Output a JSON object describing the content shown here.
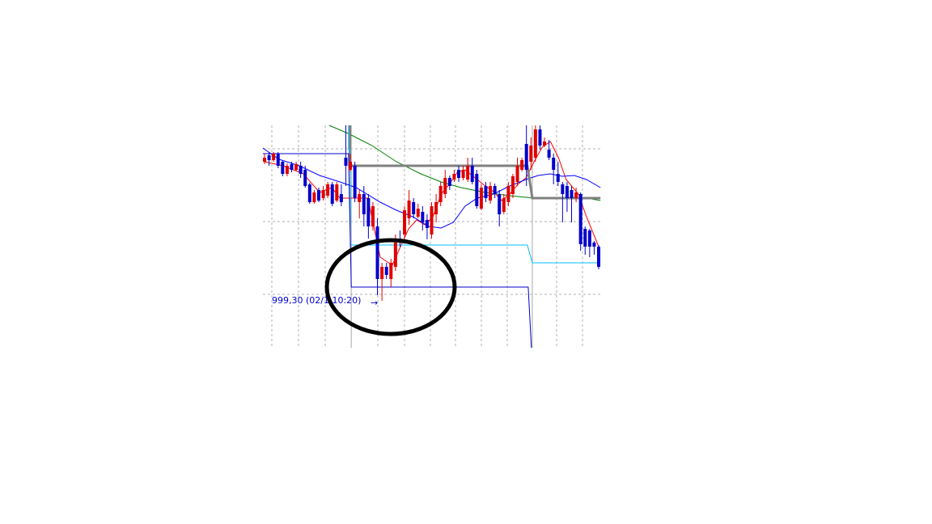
{
  "chart_data": {
    "type": "candlestick",
    "title": "",
    "xlabel": "",
    "ylabel": "",
    "xlim": [
      0,
      74
    ],
    "ylim": [
      993.5,
      1021.0
    ],
    "grid": true,
    "y_gridlines": [
      1000.1,
      1009.1,
      1018.1
    ],
    "session_separators": [
      19.2,
      59.3
    ],
    "colors": {
      "up": "#e00000",
      "down": "#0000cc",
      "grid": "#b0b0b0"
    },
    "candles_ohlc": [
      [
        1016.5,
        1017.5,
        1016.2,
        1017.0
      ],
      [
        1017.3,
        1017.7,
        1016.0,
        1016.7
      ],
      [
        1016.7,
        1017.7,
        1016.5,
        1017.5
      ],
      [
        1017.5,
        1017.7,
        1015.7,
        1016.0
      ],
      [
        1016.5,
        1016.7,
        1014.7,
        1015.0
      ],
      [
        1015.0,
        1016.3,
        1014.7,
        1016.0
      ],
      [
        1016.2,
        1016.5,
        1015.2,
        1015.5
      ],
      [
        1015.5,
        1016.5,
        1015.3,
        1016.2
      ],
      [
        1016.0,
        1016.5,
        1014.5,
        1015.0
      ],
      [
        1015.5,
        1016.0,
        1013.3,
        1013.5
      ],
      [
        1013.7,
        1013.9,
        1011.3,
        1011.5
      ],
      [
        1011.5,
        1013.0,
        1011.3,
        1012.7
      ],
      [
        1013.0,
        1013.3,
        1011.5,
        1011.7
      ],
      [
        1012.0,
        1013.5,
        1011.7,
        1013.0
      ],
      [
        1012.3,
        1014.0,
        1012.0,
        1013.7
      ],
      [
        1013.7,
        1014.0,
        1011.0,
        1011.3
      ],
      [
        1011.7,
        1014.0,
        1011.5,
        1013.7
      ],
      [
        1012.5,
        1013.7,
        1011.0,
        1011.5
      ],
      [
        1017.0,
        1021.0,
        1013.5,
        1016.0
      ],
      [
        1015.5,
        1017.5,
        1015.3,
        1016.5
      ],
      [
        1016.0,
        1016.5,
        1011.5,
        1012.0
      ],
      [
        1011.5,
        1013.0,
        1009.5,
        1012.5
      ],
      [
        1012.5,
        1013.5,
        1008.5,
        1010.0
      ],
      [
        1012.0,
        1012.5,
        1007.0,
        1008.5
      ],
      [
        1008.5,
        1011.5,
        1008.0,
        1011.0
      ],
      [
        1008.5,
        1009.5,
        1000.0,
        1002.0
      ],
      [
        1002.0,
        1004.0,
        999.3,
        1003.5
      ],
      [
        1003.5,
        1004.0,
        1002.0,
        1002.5
      ],
      [
        1002.0,
        1004.5,
        1001.0,
        1004.0
      ],
      [
        1003.5,
        1007.5,
        1003.0,
        1006.5
      ],
      [
        1007.0,
        1008.0,
        1006.0,
        1006.5
      ],
      [
        1007.5,
        1011.0,
        1007.0,
        1010.5
      ],
      [
        1009.5,
        1013.0,
        1008.7,
        1011.7
      ],
      [
        1011.5,
        1012.0,
        1009.5,
        1010.0
      ],
      [
        1009.7,
        1011.3,
        1009.5,
        1010.7
      ],
      [
        1010.3,
        1011.0,
        1008.0,
        1009.0
      ],
      [
        1009.3,
        1010.0,
        1006.9,
        1008.3
      ],
      [
        1007.5,
        1011.5,
        1007.0,
        1011.0
      ],
      [
        1010.0,
        1012.5,
        1009.0,
        1011.5
      ],
      [
        1011.5,
        1014.0,
        1011.0,
        1013.5
      ],
      [
        1012.5,
        1015.5,
        1012.0,
        1014.5
      ],
      [
        1014.5,
        1014.8,
        1013.0,
        1013.5
      ],
      [
        1014.3,
        1015.5,
        1014.0,
        1015.0
      ],
      [
        1015.5,
        1016.0,
        1014.0,
        1014.5
      ],
      [
        1014.5,
        1016.0,
        1014.2,
        1015.5
      ],
      [
        1014.3,
        1017.0,
        1014.0,
        1016.0
      ],
      [
        1016.0,
        1017.0,
        1013.7,
        1014.0
      ],
      [
        1015.0,
        1015.5,
        1010.7,
        1011.0
      ],
      [
        1010.7,
        1013.7,
        1010.5,
        1013.3
      ],
      [
        1013.5,
        1014.0,
        1011.5,
        1012.0
      ],
      [
        1011.7,
        1014.0,
        1011.3,
        1013.5
      ],
      [
        1013.5,
        1013.8,
        1012.0,
        1012.5
      ],
      [
        1012.5,
        1013.0,
        1008.5,
        1010.0
      ],
      [
        1010.3,
        1012.5,
        1010.0,
        1012.0
      ],
      [
        1011.5,
        1014.0,
        1011.0,
        1013.5
      ],
      [
        1012.5,
        1015.0,
        1012.0,
        1014.7
      ],
      [
        1014.0,
        1017.0,
        1013.5,
        1016.0
      ],
      [
        1015.5,
        1017.0,
        1015.3,
        1016.7
      ],
      [
        1018.7,
        1021.0,
        1013.5,
        1015.5
      ],
      [
        1016.5,
        1019.5,
        1015.5,
        1018.5
      ],
      [
        1017.0,
        1021.0,
        1016.5,
        1020.5
      ],
      [
        1020.5,
        1021.0,
        1018.0,
        1018.5
      ],
      [
        1018.5,
        1019.5,
        1018.3,
        1019.0
      ],
      [
        1018.0,
        1019.2,
        1016.7,
        1017.0
      ],
      [
        1017.0,
        1017.5,
        1013.7,
        1015.5
      ],
      [
        1015.0,
        1016.5,
        1013.5,
        1014.0
      ],
      [
        1013.7,
        1014.0,
        1009.0,
        1012.5
      ],
      [
        1013.5,
        1014.0,
        1010.3,
        1012.0
      ],
      [
        1013.0,
        1013.5,
        1009.0,
        1012.0
      ],
      [
        1012.0,
        1013.3,
        1011.5,
        1012.7
      ],
      [
        1012.5,
        1012.7,
        1005.5,
        1006.3
      ],
      [
        1008.2,
        1008.5,
        1005.0,
        1006.0
      ],
      [
        1008.0,
        1008.2,
        1004.7,
        1006.0
      ],
      [
        1006.5,
        1006.7,
        1005.0,
        1006.0
      ],
      [
        1006.0,
        1006.2,
        1003.2,
        1003.5
      ]
    ],
    "lines": [
      {
        "color": "#ff0000",
        "width": 1,
        "points": [
          [
            0,
            1016.5
          ],
          [
            4.1,
            1016.0
          ],
          [
            8.6,
            1015.0
          ],
          [
            12.2,
            1012.7
          ],
          [
            14.9,
            1013.3
          ],
          [
            16.7,
            1012.0
          ],
          [
            20.3,
            1012.0
          ],
          [
            22.9,
            1012.0
          ],
          [
            24.2,
            1008.5
          ],
          [
            25.6,
            1004.7
          ],
          [
            28.3,
            1003.7
          ],
          [
            30.1,
            1006.0
          ],
          [
            31.9,
            1008.2
          ],
          [
            33.7,
            1009.3
          ],
          [
            35.5,
            1008.7
          ],
          [
            37.3,
            1009.7
          ],
          [
            39.1,
            1012.5
          ],
          [
            40.9,
            1013.7
          ],
          [
            42.7,
            1015.2
          ],
          [
            44.4,
            1015.5
          ],
          [
            47.1,
            1014.3
          ],
          [
            48.9,
            1013.5
          ],
          [
            50.7,
            1012.8
          ],
          [
            52.5,
            1011.7
          ],
          [
            54.3,
            1012.5
          ],
          [
            56.1,
            1013.7
          ],
          [
            57.9,
            1014.5
          ],
          [
            59.7,
            1016.5
          ],
          [
            61.5,
            1018.3
          ],
          [
            63.3,
            1019.0
          ],
          [
            65.1,
            1017.0
          ],
          [
            66.8,
            1014.3
          ],
          [
            69.5,
            1012.5
          ],
          [
            71.3,
            1009.7
          ],
          [
            74,
            1006.0
          ]
        ]
      },
      {
        "color": "#0000ff",
        "width": 1,
        "points": [
          [
            -0.4,
            1018.2
          ],
          [
            3.2,
            1016.8
          ],
          [
            7.7,
            1016.0
          ],
          [
            12.2,
            1014.8
          ],
          [
            16.7,
            1014.0
          ],
          [
            20.3,
            1013.3
          ],
          [
            25.6,
            1011.5
          ],
          [
            29.2,
            1010.5
          ],
          [
            32.8,
            1009.7
          ],
          [
            36.4,
            1008.5
          ],
          [
            39.1,
            1008.3
          ],
          [
            41.8,
            1009.0
          ],
          [
            44.4,
            1011.0
          ],
          [
            47.1,
            1012.0
          ],
          [
            50.7,
            1012.5
          ],
          [
            54.3,
            1013.5
          ],
          [
            57.9,
            1014.3
          ],
          [
            60.6,
            1014.8
          ],
          [
            63.3,
            1015.0
          ],
          [
            65.9,
            1014.7
          ],
          [
            68.6,
            1014.8
          ],
          [
            71.3,
            1014.3
          ],
          [
            74.4,
            1013.3
          ]
        ]
      },
      {
        "color": "#008000",
        "width": 1,
        "points": [
          [
            14.3,
            1021.0
          ],
          [
            18.5,
            1020.0
          ],
          [
            23.8,
            1018.5
          ],
          [
            29.2,
            1016.5
          ],
          [
            34.6,
            1015.0
          ],
          [
            39.1,
            1014.0
          ],
          [
            43.5,
            1013.3
          ],
          [
            48.9,
            1012.7
          ],
          [
            54.3,
            1012.3
          ],
          [
            59.7,
            1012.0
          ],
          [
            65.1,
            1012.1
          ],
          [
            70.4,
            1012.1
          ],
          [
            74.4,
            1011.7
          ]
        ]
      },
      {
        "color": "#808080",
        "width": 3,
        "points": [
          [
            18.9,
            1021.0
          ],
          [
            18.9,
            1016.0
          ],
          [
            58.2,
            1016.0
          ],
          [
            59.3,
            1012.0
          ],
          [
            74.4,
            1012.0
          ]
        ]
      },
      {
        "color": "#00c0ff",
        "width": 1,
        "points": [
          [
            18.6,
            1021.0
          ],
          [
            18.6,
            1018.0
          ],
          [
            19.0,
            1018.0
          ],
          [
            19.0,
            1006.2
          ],
          [
            58.2,
            1006.2
          ],
          [
            59.3,
            1004.0
          ],
          [
            74.4,
            1004.0
          ]
        ]
      },
      {
        "color": "#0000cc",
        "width": 1,
        "points": [
          [
            -0.4,
            1017.5
          ],
          [
            18.6,
            1017.5
          ],
          [
            19.2,
            1001.0
          ],
          [
            58.4,
            1001.0
          ],
          [
            59.1,
            993.5
          ]
        ]
      }
    ],
    "annotations": [
      {
        "text": "999,30 (02/1 10:20)",
        "color": "#0000cc"
      },
      {
        "text": "→",
        "color": "#0000cc"
      }
    ]
  }
}
